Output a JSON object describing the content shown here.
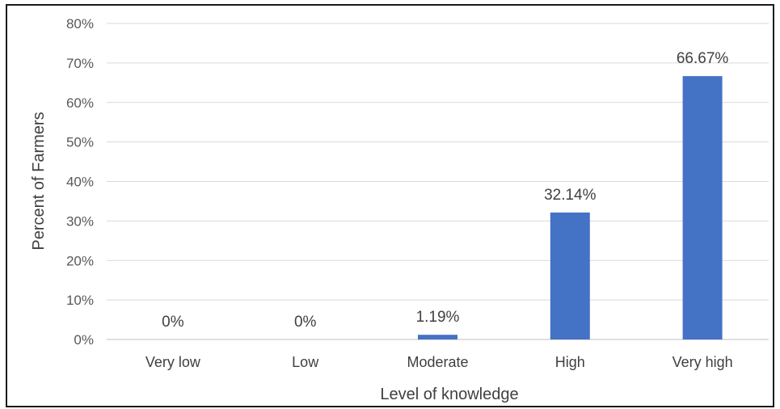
{
  "chart_data": {
    "type": "bar",
    "categories": [
      "Very low",
      "Low",
      "Moderate",
      "High",
      "Very high"
    ],
    "values": [
      0,
      0,
      1.19,
      32.14,
      66.67
    ],
    "data_labels": [
      "0%",
      "0%",
      "1.19%",
      "32.14%",
      "66.67%"
    ],
    "title": "",
    "xlabel": "Level of knowledge",
    "ylabel": "Percent of Farmers",
    "ylim": [
      0,
      80
    ],
    "y_ticks": [
      0,
      10,
      20,
      30,
      40,
      50,
      60,
      70,
      80
    ],
    "y_tick_labels": [
      "0%",
      "10%",
      "20%",
      "30%",
      "40%",
      "50%",
      "60%",
      "70%",
      "80%"
    ],
    "grid": true,
    "legend": "none",
    "bar_color": "#4472C4",
    "grid_color": "#D9D9D9"
  }
}
